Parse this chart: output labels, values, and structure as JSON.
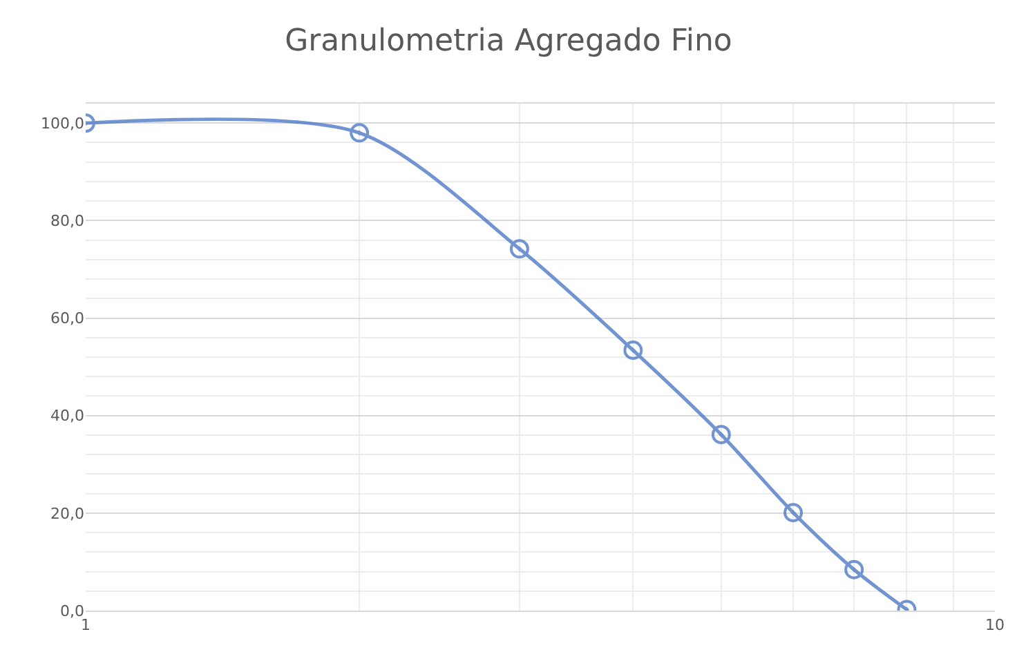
{
  "chart_data": {
    "type": "line",
    "title": "Granulometria Agregado Fino",
    "x": [
      1,
      2,
      3,
      4,
      5,
      6,
      7,
      8
    ],
    "series": [
      {
        "color": "#4472c4",
        "values": [
          100.0,
          98.0,
          74.2,
          53.4,
          36.1,
          20.1,
          8.4,
          0.2
        ]
      }
    ],
    "log": "x",
    "xlim": [
      1,
      10
    ],
    "xticks": [
      1,
      {
        "value": 2,
        "label": null
      },
      {
        "value": 3,
        "label": null
      },
      {
        "value": 4,
        "label": null
      },
      {
        "value": 5,
        "label": null
      },
      {
        "value": 6,
        "label": null
      },
      {
        "value": 7,
        "label": null
      },
      {
        "value": 8,
        "label": null
      },
      {
        "value": 9,
        "label": null
      },
      10
    ],
    "ylim": [
      0,
      104
    ],
    "yticks": [
      {
        "value": 0,
        "label": "0,0"
      },
      {
        "value": 4,
        "label": null
      },
      {
        "value": 8,
        "label": null
      },
      {
        "value": 12,
        "label": null
      },
      {
        "value": 16,
        "label": null
      },
      {
        "value": 20,
        "label": "20,0"
      },
      {
        "value": 24,
        "label": null
      },
      {
        "value": 28,
        "label": null
      },
      {
        "value": 32,
        "label": null
      },
      {
        "value": 36,
        "label": null
      },
      {
        "value": 40,
        "label": "40,0"
      },
      {
        "value": 44,
        "label": null
      },
      {
        "value": 48,
        "label": null
      },
      {
        "value": 52,
        "label": null
      },
      {
        "value": 56,
        "label": null
      },
      {
        "value": 60,
        "label": "60,0"
      },
      {
        "value": 64,
        "label": null
      },
      {
        "value": 68,
        "label": null
      },
      {
        "value": 72,
        "label": null
      },
      {
        "value": 76,
        "label": null
      },
      {
        "value": 80,
        "label": "80,0"
      },
      {
        "value": 84,
        "label": null
      },
      {
        "value": 88,
        "label": null
      },
      {
        "value": 92,
        "label": null
      },
      {
        "value": 96,
        "label": null
      },
      {
        "value": 100,
        "label": "100,0"
      }
    ],
    "grid": true,
    "marker": "circle",
    "line_style": "solid"
  }
}
